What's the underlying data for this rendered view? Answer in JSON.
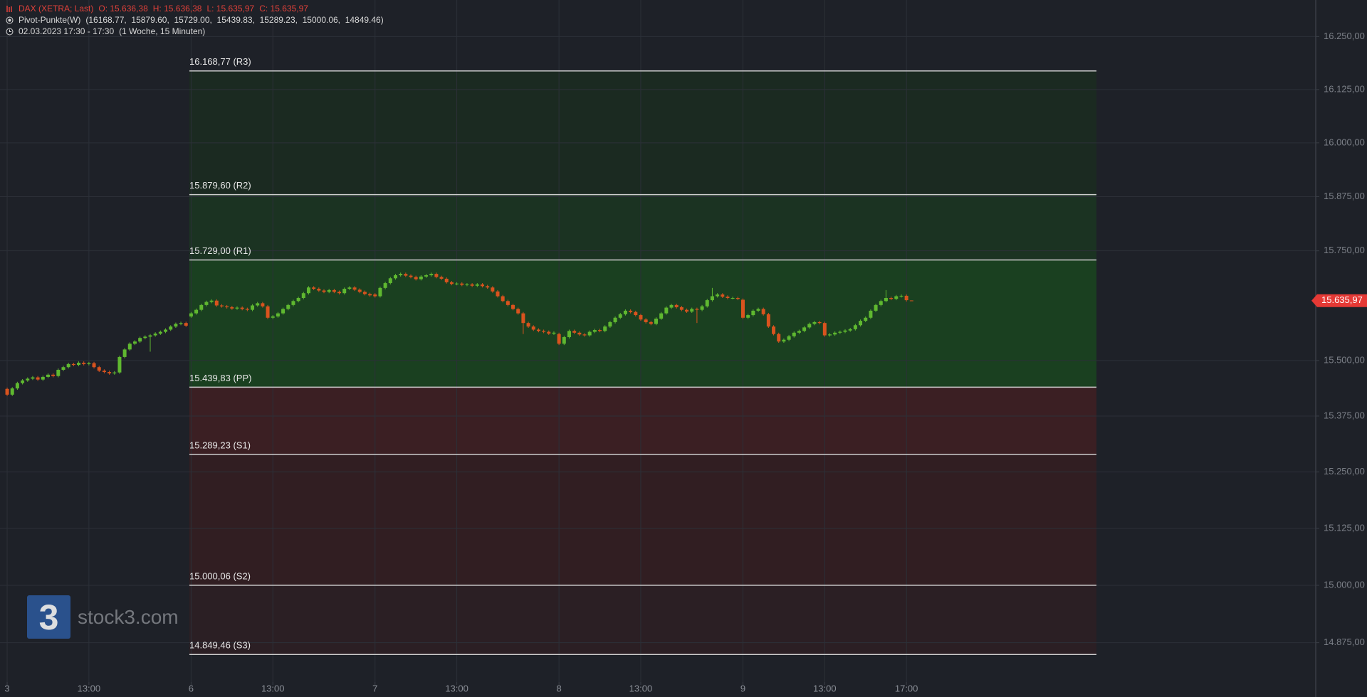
{
  "chart_data": {
    "type": "candlestick",
    "header": {
      "instrument": "DAX (XETRA; Last)",
      "ohlc": [
        "O: 15.636,38",
        "H: 15.636,38",
        "L: 15.635,97",
        "C: 15.635,97"
      ],
      "indicator": "Pivot-Punkte(W)",
      "indicator_values": "(16168.77,  15879.60,  15729.00,  15439.83,  15289.23,  15000.06,  14849.46)",
      "period": "02.03.2023 17:30 - 17:30",
      "period_note": "(1 Woche, 15 Minuten)"
    },
    "candles": [
      [
        15436,
        15439,
        15420,
        15423
      ],
      [
        15423,
        15440,
        15420,
        15437
      ],
      [
        15437,
        15452,
        15434,
        15449
      ],
      [
        15449,
        15458,
        15446,
        15455
      ],
      [
        15455,
        15462,
        15452,
        15459
      ],
      [
        15459,
        15465,
        15456,
        15462
      ],
      [
        15462,
        15465,
        15454,
        15457
      ],
      [
        15457,
        15466,
        15454,
        15463
      ],
      [
        15463,
        15471,
        15460,
        15468
      ],
      [
        15468,
        15471,
        15462,
        15465
      ],
      [
        15465,
        15482,
        15462,
        15479
      ],
      [
        15479,
        15488,
        15476,
        15485
      ],
      [
        15485,
        15495,
        15482,
        15492
      ],
      [
        15492,
        15495,
        15487,
        15490
      ],
      [
        15490,
        15498,
        15487,
        15495
      ],
      [
        15495,
        15498,
        15489,
        15492
      ],
      [
        15492,
        15497,
        15489,
        15494
      ],
      [
        15494,
        15497,
        15482,
        15485
      ],
      [
        15485,
        15488,
        15474,
        15477
      ],
      [
        15477,
        15480,
        15471,
        15474
      ],
      [
        15474,
        15477,
        15468,
        15471
      ],
      [
        15471,
        15476,
        15468,
        15473
      ],
      [
        15473,
        15511,
        15470,
        15508
      ],
      [
        15508,
        15528,
        15505,
        15525
      ],
      [
        15525,
        15541,
        15522,
        15538
      ],
      [
        15538,
        15546,
        15535,
        15543
      ],
      [
        15543,
        15554,
        15540,
        15551
      ],
      [
        15551,
        15557,
        15548,
        15554
      ],
      [
        15554,
        15560,
        15520,
        15557
      ],
      [
        15557,
        15564,
        15554,
        15561
      ],
      [
        15561,
        15568,
        15558,
        15565
      ],
      [
        15565,
        15573,
        15562,
        15570
      ],
      [
        15570,
        15580,
        15567,
        15577
      ],
      [
        15577,
        15586,
        15574,
        15583
      ],
      [
        15583,
        15588,
        15580,
        15585
      ],
      [
        15585,
        15588,
        15576,
        15579
      ],
      [
        15600,
        15610,
        15597,
        15607
      ],
      [
        15607,
        15618,
        15604,
        15615
      ],
      [
        15615,
        15629,
        15612,
        15626
      ],
      [
        15626,
        15636,
        15623,
        15633
      ],
      [
        15633,
        15639,
        15630,
        15636
      ],
      [
        15636,
        15639,
        15622,
        15625
      ],
      [
        15625,
        15628,
        15620,
        15623
      ],
      [
        15623,
        15626,
        15618,
        15621
      ],
      [
        15621,
        15624,
        15615,
        15618
      ],
      [
        15618,
        15623,
        15615,
        15620
      ],
      [
        15620,
        15623,
        15614,
        15617
      ],
      [
        15617,
        15620,
        15612,
        15615
      ],
      [
        15615,
        15628,
        15612,
        15625
      ],
      [
        15625,
        15633,
        15622,
        15630
      ],
      [
        15630,
        15633,
        15620,
        15623
      ],
      [
        15623,
        15626,
        15594,
        15597
      ],
      [
        15597,
        15603,
        15594,
        15600
      ],
      [
        15600,
        15610,
        15597,
        15607
      ],
      [
        15607,
        15620,
        15604,
        15617
      ],
      [
        15617,
        15629,
        15614,
        15626
      ],
      [
        15626,
        15638,
        15623,
        15635
      ],
      [
        15635,
        15645,
        15632,
        15642
      ],
      [
        15642,
        15656,
        15639,
        15653
      ],
      [
        15653,
        15669,
        15650,
        15666
      ],
      [
        15666,
        15669,
        15660,
        15663
      ],
      [
        15663,
        15666,
        15656,
        15659
      ],
      [
        15659,
        15662,
        15653,
        15656
      ],
      [
        15656,
        15663,
        15653,
        15660
      ],
      [
        15660,
        15663,
        15653,
        15656
      ],
      [
        15656,
        15659,
        15650,
        15653
      ],
      [
        15653,
        15666,
        15650,
        15663
      ],
      [
        15663,
        15669,
        15660,
        15666
      ],
      [
        15666,
        15669,
        15658,
        15661
      ],
      [
        15661,
        15664,
        15653,
        15656
      ],
      [
        15656,
        15659,
        15648,
        15651
      ],
      [
        15651,
        15654,
        15645,
        15648
      ],
      [
        15650,
        15653,
        15643,
        15646
      ],
      [
        15646,
        15668,
        15643,
        15665
      ],
      [
        15665,
        15679,
        15662,
        15676
      ],
      [
        15676,
        15690,
        15673,
        15687
      ],
      [
        15687,
        15697,
        15684,
        15694
      ],
      [
        15694,
        15700,
        15691,
        15697
      ],
      [
        15697,
        15700,
        15690,
        15693
      ],
      [
        15693,
        15696,
        15687,
        15690
      ],
      [
        15690,
        15693,
        15682,
        15685
      ],
      [
        15685,
        15694,
        15682,
        15691
      ],
      [
        15691,
        15697,
        15688,
        15694
      ],
      [
        15694,
        15700,
        15691,
        15697
      ],
      [
        15697,
        15700,
        15687,
        15690
      ],
      [
        15690,
        15693,
        15683,
        15686
      ],
      [
        15686,
        15689,
        15675,
        15678
      ],
      [
        15678,
        15681,
        15671,
        15674
      ],
      [
        15674,
        15678,
        15671,
        15675
      ],
      [
        15675,
        15678,
        15669,
        15672
      ],
      [
        15672,
        15676,
        15669,
        15673
      ],
      [
        15673,
        15676,
        15667,
        15670
      ],
      [
        15670,
        15676,
        15667,
        15673
      ],
      [
        15673,
        15676,
        15666,
        15669
      ],
      [
        15669,
        15672,
        15663,
        15666
      ],
      [
        15666,
        15669,
        15654,
        15657
      ],
      [
        15657,
        15660,
        15643,
        15646
      ],
      [
        15646,
        15649,
        15632,
        15635
      ],
      [
        15635,
        15638,
        15623,
        15626
      ],
      [
        15626,
        15629,
        15614,
        15617
      ],
      [
        15617,
        15620,
        15604,
        15607
      ],
      [
        15607,
        15610,
        15560,
        15585
      ],
      [
        15585,
        15588,
        15574,
        15577
      ],
      [
        15577,
        15580,
        15567,
        15570
      ],
      [
        15570,
        15573,
        15564,
        15567
      ],
      [
        15567,
        15570,
        15562,
        15565
      ],
      [
        15565,
        15568,
        15558,
        15561
      ],
      [
        15561,
        15566,
        15558,
        15563
      ],
      [
        15560,
        15563,
        15535,
        15538
      ],
      [
        15538,
        15556,
        15535,
        15553
      ],
      [
        15553,
        15570,
        15550,
        15567
      ],
      [
        15567,
        15570,
        15560,
        15563
      ],
      [
        15563,
        15566,
        15556,
        15559
      ],
      [
        15559,
        15562,
        15554,
        15557
      ],
      [
        15557,
        15568,
        15554,
        15565
      ],
      [
        15565,
        15572,
        15562,
        15569
      ],
      [
        15569,
        15572,
        15564,
        15567
      ],
      [
        15567,
        15580,
        15564,
        15577
      ],
      [
        15577,
        15590,
        15574,
        15587
      ],
      [
        15587,
        15600,
        15584,
        15597
      ],
      [
        15597,
        15608,
        15594,
        15605
      ],
      [
        15605,
        15616,
        15602,
        15613
      ],
      [
        15613,
        15616,
        15607,
        15610
      ],
      [
        15610,
        15613,
        15600,
        15603
      ],
      [
        15603,
        15606,
        15590,
        15593
      ],
      [
        15593,
        15596,
        15584,
        15587
      ],
      [
        15587,
        15590,
        15580,
        15583
      ],
      [
        15583,
        15598,
        15580,
        15595
      ],
      [
        15595,
        15610,
        15592,
        15607
      ],
      [
        15607,
        15623,
        15604,
        15620
      ],
      [
        15620,
        15629,
        15617,
        15626
      ],
      [
        15626,
        15629,
        15618,
        15621
      ],
      [
        15621,
        15624,
        15612,
        15615
      ],
      [
        15615,
        15618,
        15608,
        15611
      ],
      [
        15611,
        15620,
        15608,
        15617
      ],
      [
        15617,
        15620,
        15585,
        15615
      ],
      [
        15615,
        15626,
        15612,
        15623
      ],
      [
        15623,
        15640,
        15620,
        15637
      ],
      [
        15637,
        15665,
        15634,
        15646
      ],
      [
        15646,
        15653,
        15643,
        15650
      ],
      [
        15650,
        15653,
        15642,
        15645
      ],
      [
        15645,
        15648,
        15639,
        15642
      ],
      [
        15642,
        15645,
        15639,
        15642
      ],
      [
        15642,
        15645,
        15637,
        15640
      ],
      [
        15638,
        15641,
        15594,
        15597
      ],
      [
        15597,
        15606,
        15594,
        15603
      ],
      [
        15603,
        15616,
        15600,
        15613
      ],
      [
        15613,
        15620,
        15610,
        15617
      ],
      [
        15617,
        15620,
        15602,
        15605
      ],
      [
        15605,
        15608,
        15574,
        15577
      ],
      [
        15577,
        15580,
        15557,
        15560
      ],
      [
        15560,
        15563,
        15540,
        15543
      ],
      [
        15543,
        15550,
        15540,
        15547
      ],
      [
        15547,
        15558,
        15544,
        15555
      ],
      [
        15555,
        15566,
        15552,
        15563
      ],
      [
        15563,
        15570,
        15560,
        15567
      ],
      [
        15567,
        15578,
        15564,
        15575
      ],
      [
        15575,
        15586,
        15572,
        15583
      ],
      [
        15583,
        15590,
        15580,
        15587
      ],
      [
        15587,
        15590,
        15582,
        15585
      ],
      [
        15585,
        15588,
        15554,
        15557
      ],
      [
        15557,
        15562,
        15554,
        15559
      ],
      [
        15559,
        15566,
        15556,
        15563
      ],
      [
        15563,
        15568,
        15560,
        15565
      ],
      [
        15565,
        15571,
        15562,
        15568
      ],
      [
        15568,
        15574,
        15565,
        15571
      ],
      [
        15571,
        15583,
        15568,
        15580
      ],
      [
        15580,
        15593,
        15577,
        15590
      ],
      [
        15590,
        15600,
        15587,
        15597
      ],
      [
        15597,
        15616,
        15594,
        15613
      ],
      [
        15613,
        15629,
        15610,
        15626
      ],
      [
        15626,
        15638,
        15623,
        15635
      ],
      [
        15635,
        15660,
        15632,
        15642
      ],
      [
        15642,
        15645,
        15637,
        15640
      ],
      [
        15640,
        15649,
        15637,
        15646
      ],
      [
        15646,
        15650,
        15643,
        15647
      ],
      [
        15647,
        15650,
        15634,
        15637
      ],
      [
        15636.38,
        15636.38,
        15635.97,
        15635.97
      ]
    ],
    "up_color": "#5fb830",
    "down_color": "#d9531e",
    "xlim": [
      -1.4,
      256.1
    ],
    "xticks": [
      {
        "value": 0,
        "label": "3"
      },
      {
        "value": 16,
        "label": "13:00"
      },
      {
        "value": 36,
        "label": "6"
      },
      {
        "value": 52,
        "label": "13:00"
      },
      {
        "value": 72,
        "label": "7"
      },
      {
        "value": 88,
        "label": "13:00"
      },
      {
        "value": 108,
        "label": "8"
      },
      {
        "value": 124,
        "label": "13:00"
      },
      {
        "value": 144,
        "label": "9"
      },
      {
        "value": 160,
        "label": "13:00"
      },
      {
        "value": 176,
        "label": "17:00"
      }
    ],
    "ylim": [
      14789.8,
      16336.9
    ],
    "log_scale": true,
    "yticks": [
      {
        "value": 16250,
        "label": "16.250,00"
      },
      {
        "value": 16125,
        "label": "16.125,00"
      },
      {
        "value": 16000,
        "label": "16.000,00"
      },
      {
        "value": 15875,
        "label": "15.875,00"
      },
      {
        "value": 15750,
        "label": "15.750,00"
      },
      {
        "value": 15500,
        "label": "15.500,00"
      },
      {
        "value": 15375,
        "label": "15.375,00"
      },
      {
        "value": 15250,
        "label": "15.250,00"
      },
      {
        "value": 15125,
        "label": "15.125,00"
      },
      {
        "value": 15000,
        "label": "15.000,00"
      },
      {
        "value": 14875,
        "label": "14.875,00"
      }
    ],
    "grid": true,
    "pivot_levels": [
      {
        "value": 16168.77,
        "label": "16.168,77 (R3)"
      },
      {
        "value": 15879.6,
        "label": "15.879,60 (R2)"
      },
      {
        "value": 15729.0,
        "label": "15.729,00 (R1)"
      },
      {
        "value": 15439.83,
        "label": "15.439,83 (PP)"
      },
      {
        "value": 15289.23,
        "label": "15.289,23 (S1)"
      },
      {
        "value": 15000.06,
        "label": "15.000,06 (S2)"
      },
      {
        "value": 14849.46,
        "label": "14.849,46 (S3)"
      }
    ],
    "pivot_line_color": "#cfcfcf",
    "zone_colors": [
      "#1b2a21",
      "#1b3322",
      "#1a4020",
      "#3b1f23",
      "#311e22",
      "#2b1f24"
    ],
    "last_price": {
      "value": 15635.97,
      "label": "15.635,97"
    },
    "watermark": {
      "logo": "3",
      "text": "stock3.com"
    }
  }
}
